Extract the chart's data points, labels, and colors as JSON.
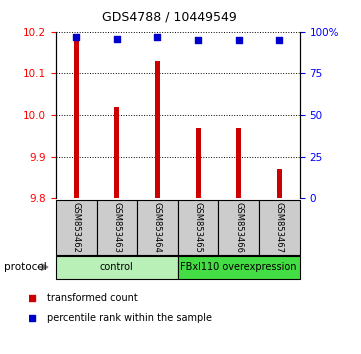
{
  "title": "GDS4788 / 10449549",
  "samples": [
    "GSM853462",
    "GSM853463",
    "GSM853464",
    "GSM853465",
    "GSM853466",
    "GSM853467"
  ],
  "red_values": [
    10.185,
    10.02,
    10.13,
    9.97,
    9.97,
    9.87
  ],
  "blue_values": [
    97,
    96,
    97,
    95,
    95,
    95
  ],
  "ylim_left": [
    9.8,
    10.2
  ],
  "ylim_right": [
    0,
    100
  ],
  "yticks_left": [
    9.8,
    9.9,
    10.0,
    10.1,
    10.2
  ],
  "yticks_right": [
    0,
    25,
    50,
    75,
    100
  ],
  "ytick_labels_right": [
    "0",
    "25",
    "50",
    "75",
    "100%"
  ],
  "group_colors": [
    "#b8f0b8",
    "#44dd44"
  ],
  "group_labels": [
    "control",
    "FBxl110 overexpression"
  ],
  "group_starts": [
    0,
    3
  ],
  "group_ends": [
    3,
    6
  ],
  "bar_color": "#cc0000",
  "dot_color": "#0000cc",
  "sample_bg_color": "#cccccc",
  "legend_red_label": "transformed count",
  "legend_blue_label": "percentile rank within the sample",
  "protocol_label": "protocol",
  "bar_width": 0.12
}
